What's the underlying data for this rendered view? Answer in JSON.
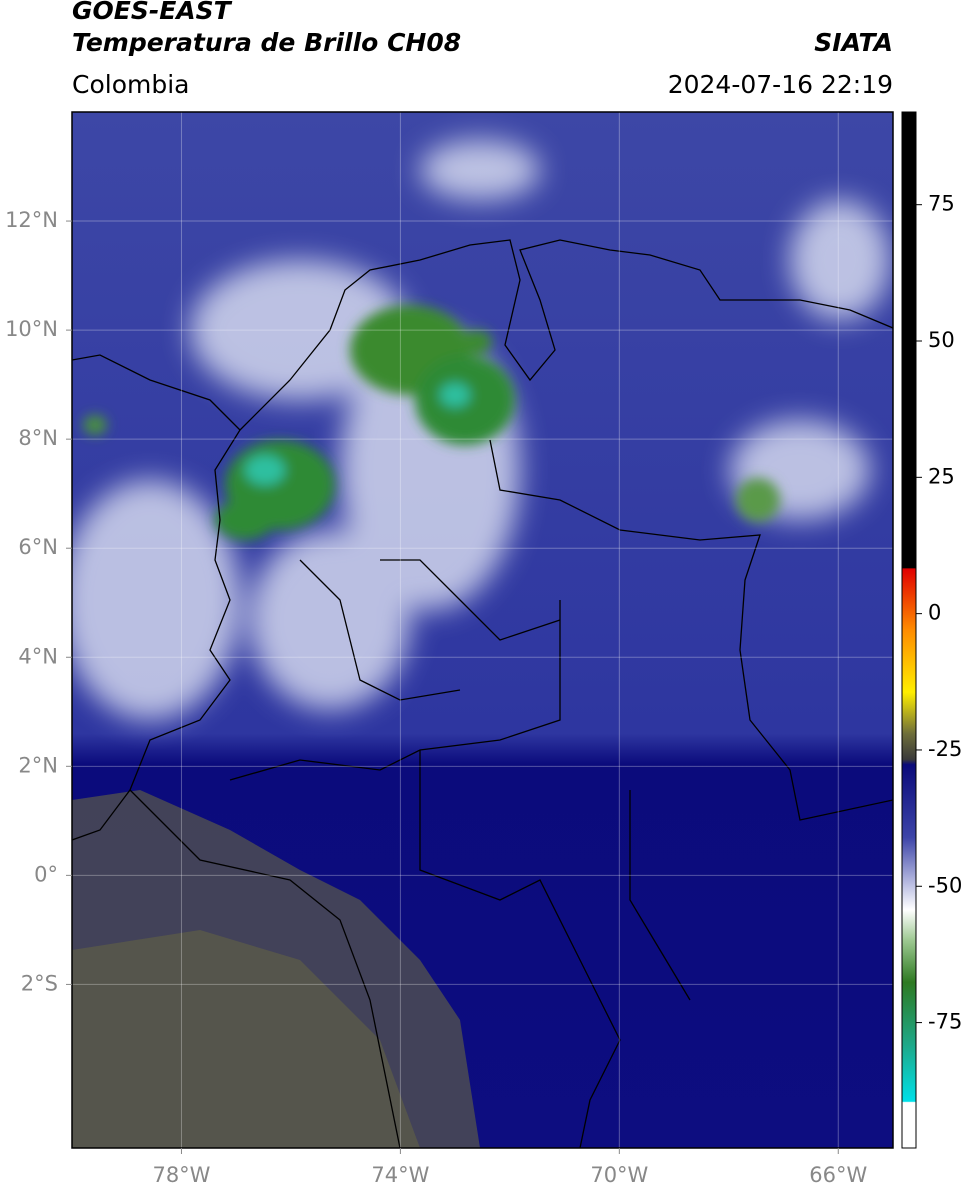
{
  "header": {
    "satellite": "GOES-EAST",
    "product": "Temperatura de Brillo CH08",
    "agency": "SIATA",
    "region": "Colombia",
    "datetime": "2024-07-16 22:19"
  },
  "map": {
    "xlim": [
      -80,
      -65
    ],
    "ylim": [
      -5,
      14
    ],
    "xticks": [
      {
        "value": -78,
        "label": "78°W"
      },
      {
        "value": -74,
        "label": "74°W"
      },
      {
        "value": -70,
        "label": "70°W"
      },
      {
        "value": -66,
        "label": "66°W"
      }
    ],
    "yticks": [
      {
        "value": 12,
        "label": "12°N"
      },
      {
        "value": 10,
        "label": "10°N"
      },
      {
        "value": 8,
        "label": "8°N"
      },
      {
        "value": 6,
        "label": "6°N"
      },
      {
        "value": 4,
        "label": "4°N"
      },
      {
        "value": 2,
        "label": "2°N"
      },
      {
        "value": 0,
        "label": "0°"
      },
      {
        "value": -2,
        "label": "2°S"
      }
    ],
    "grid": true
  },
  "colorbar": {
    "lim": [
      -98,
      92
    ],
    "ticks": [
      75,
      50,
      25,
      0,
      -25,
      -50,
      -75
    ]
  }
}
